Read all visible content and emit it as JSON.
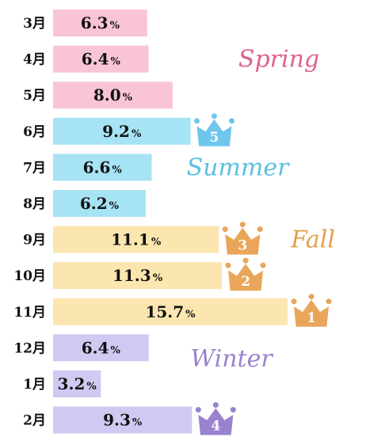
{
  "chart_data": {
    "type": "bar",
    "orientation": "horizontal",
    "unit": "%",
    "categories": [
      "3月",
      "4月",
      "5月",
      "6月",
      "7月",
      "8月",
      "9月",
      "10月",
      "11月",
      "12月",
      "1月",
      "2月"
    ],
    "values": [
      6.3,
      6.4,
      8.0,
      9.2,
      6.6,
      6.2,
      11.1,
      11.3,
      15.7,
      6.4,
      3.2,
      9.3
    ],
    "value_labels": [
      "6.3",
      "6.4",
      "8.0",
      "9.2",
      "6.6",
      "6.2",
      "11.1",
      "11.3",
      "15.7",
      "6.4",
      "3.2",
      "9.3"
    ],
    "xlim": [
      0,
      15.7
    ],
    "seasons": [
      {
        "name": "Spring",
        "months": [
          "3月",
          "4月",
          "5月"
        ],
        "color": "#f9c4d8",
        "text_color": "#e0608f"
      },
      {
        "name": "Summer",
        "months": [
          "6月",
          "7月",
          "8月"
        ],
        "color": "#a6e3f4",
        "text_color": "#5bbfe0"
      },
      {
        "name": "Fall",
        "months": [
          "9月",
          "10月",
          "11月"
        ],
        "color": "#fbe6b0",
        "text_color": "#e3a04a"
      },
      {
        "name": "Winter",
        "months": [
          "12月",
          "1月",
          "2月"
        ],
        "color": "#cfcaf1",
        "text_color": "#9a82cf"
      }
    ],
    "rankings": [
      {
        "rank": "1",
        "month": "11月",
        "color": "#e9a65a"
      },
      {
        "rank": "2",
        "month": "10月",
        "color": "#e9a65a"
      },
      {
        "rank": "3",
        "month": "9月",
        "color": "#e9a65a"
      },
      {
        "rank": "4",
        "month": "2月",
        "color": "#9a82cf"
      },
      {
        "rank": "5",
        "month": "6月",
        "color": "#6ec6ea"
      }
    ],
    "grid": false,
    "legend": "none"
  }
}
